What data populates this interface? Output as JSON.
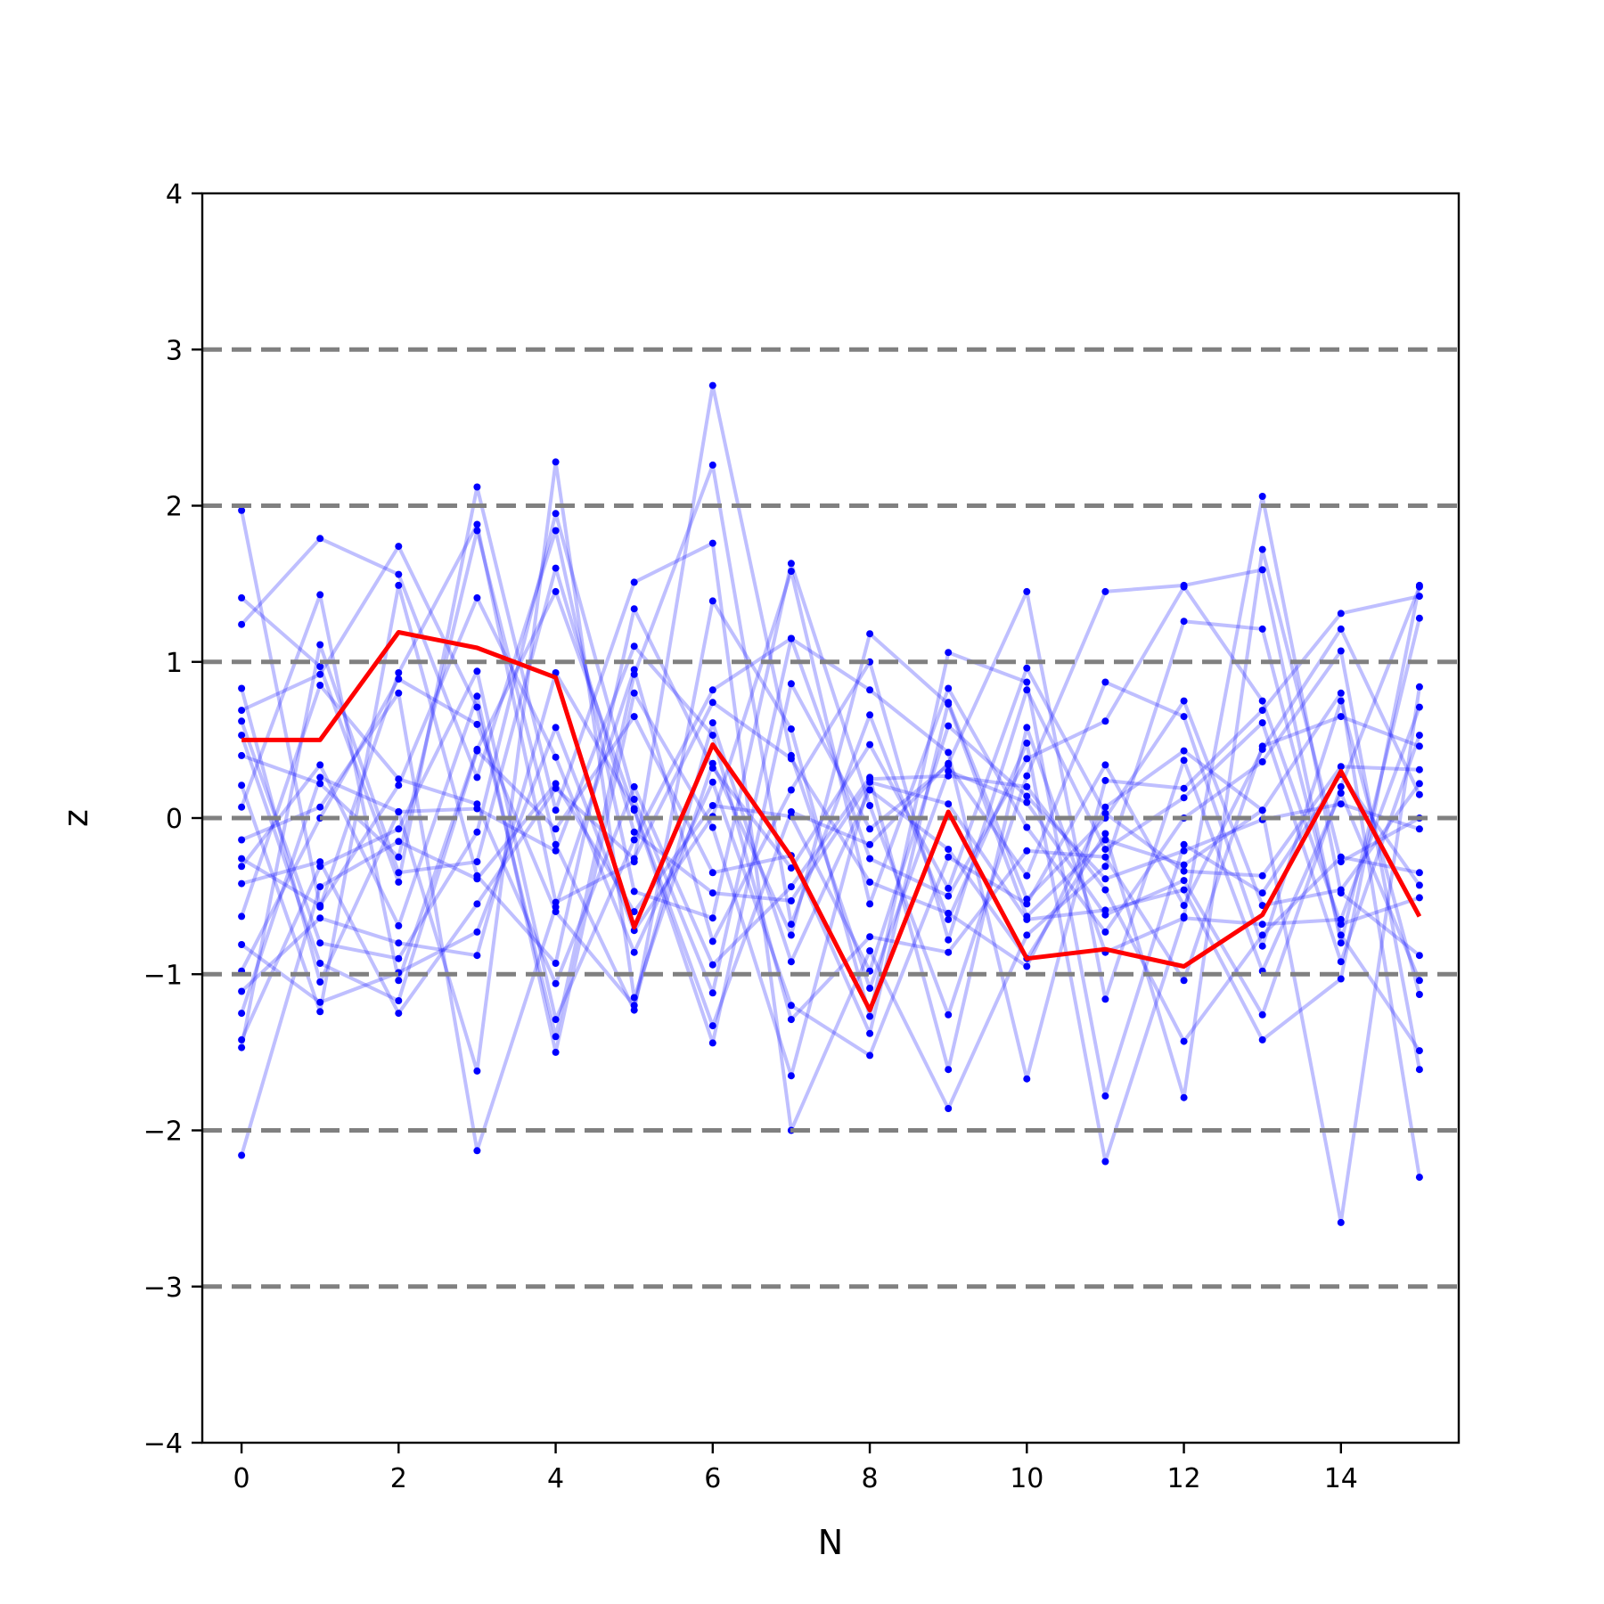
{
  "chart_data": {
    "type": "line",
    "title": "",
    "xlabel": "N",
    "ylabel": "z",
    "xlim": [
      -0.5,
      15.5
    ],
    "ylim": [
      -4,
      4
    ],
    "xticks": [
      0,
      2,
      4,
      6,
      8,
      10,
      12,
      14
    ],
    "yticks": [
      -4,
      -3,
      -2,
      -1,
      0,
      1,
      2,
      3,
      4
    ],
    "ytick_labels": [
      "−4",
      "−3",
      "−2",
      "−1",
      "0",
      "1",
      "2",
      "3",
      "4"
    ],
    "reference_lines": [
      -3,
      -2,
      -1,
      0,
      1,
      2,
      3
    ],
    "reference_line_color": "#808080",
    "grid": false,
    "legend": "none",
    "x": [
      0,
      1,
      2,
      3,
      4,
      5,
      6,
      7,
      8,
      9,
      10,
      11,
      12,
      13,
      14,
      15
    ],
    "highlight_series": {
      "color": "#ff0000",
      "values": [
        0.5,
        0.5,
        1.19,
        1.09,
        0.9,
        -0.7,
        0.47,
        -0.25,
        -1.23,
        0.04,
        -0.9,
        -0.84,
        -0.95,
        -0.62,
        0.3,
        -0.63
      ]
    },
    "background_series_color": "#0000ff",
    "background_series": [
      [
        1.97,
        -0.57,
        0.93,
        1.88,
        -0.54,
        -0.28,
        2.77,
        0.4,
        -1.09,
        0.3,
        0.1,
        -0.62,
        -0.4,
        -1.26,
        0.2,
        1.48
      ],
      [
        1.41,
        0.97,
        -0.41,
        2.12,
        0.05,
        1.51,
        1.76,
        -2.0,
        -0.85,
        -1.86,
        -0.75,
        -0.31,
        1.26,
        1.21,
        -0.75,
        -1.49
      ],
      [
        1.24,
        1.79,
        1.56,
        0.26,
        1.84,
        -0.47,
        -0.64,
        1.63,
        0.08,
        -1.26,
        0.27,
        1.45,
        1.49,
        1.59,
        -0.8,
        1.28
      ],
      [
        0.83,
        -1.05,
        0.04,
        -1.62,
        2.28,
        -1.15,
        0.35,
        -0.75,
        1.18,
        0.73,
        -0.63,
        -0.14,
        -0.3,
        0.05,
        -2.59,
        0.84
      ],
      [
        0.69,
        0.92,
        1.74,
        0.71,
        -1.4,
        0.92,
        2.26,
        -0.68,
        0.66,
        -0.65,
        0.48,
        -2.2,
        -0.63,
        2.06,
        -0.48,
        -0.88
      ],
      [
        0.62,
        -0.8,
        -0.9,
        -0.09,
        1.95,
        0.12,
        -1.12,
        1.15,
        0.82,
        0.42,
        -1.67,
        0.24,
        0.19,
        0.69,
        1.31,
        1.42
      ],
      [
        0.4,
        0.22,
        -0.25,
        1.84,
        -0.17,
        -1.23,
        1.39,
        0.57,
        -1.27,
        1.06,
        0.87,
        -1.78,
        -0.17,
        -0.48,
        0.28,
        -0.43
      ],
      [
        0.21,
        -1.24,
        1.49,
        -0.37,
        -0.93,
        1.34,
        0.32,
        -0.32,
        0.47,
        -0.45,
        0.96,
        0.03,
        -0.34,
        -0.37,
        0.33,
        0.31
      ],
      [
        0.07,
        1.43,
        -1.04,
        0.44,
        1.45,
        0.05,
        -1.44,
        0.86,
        -0.07,
        0.34,
        -0.37,
        0.87,
        0.65,
        -0.82,
        0.75,
        -1.13
      ],
      [
        -0.14,
        0.07,
        0.8,
        -2.13,
        -0.57,
        0.95,
        -0.79,
        0.18,
        1.0,
        -0.78,
        0.82,
        -0.2,
        0.13,
        0.61,
        -0.92,
        0.53
      ],
      [
        -0.26,
        -0.56,
        0.21,
        1.41,
        0.39,
        -0.86,
        0.23,
        -1.2,
        -1.52,
        -0.25,
        -0.55,
        0.34,
        -0.56,
        0.44,
        1.21,
        0.15
      ],
      [
        -0.31,
        0.34,
        -0.69,
        0.78,
        -1.5,
        0.8,
        -0.06,
        -1.65,
        0.25,
        0.27,
        0.2,
        -0.46,
        -1.43,
        -0.75,
        -0.25,
        -0.35
      ],
      [
        -0.42,
        -0.28,
        -1.25,
        -0.55,
        0.19,
        -0.26,
        0.74,
        0.38,
        -0.41,
        -0.61,
        -0.95,
        0.07,
        0.43,
        0.05,
        0.8,
        -2.3
      ],
      [
        -0.63,
        0.85,
        0.25,
        0.09,
        -1.06,
        0.2,
        -0.94,
        -0.44,
        0.26,
        -1.61,
        0.58,
        -0.86,
        -0.64,
        -0.68,
        -0.65,
        0.71
      ],
      [
        -0.81,
        -1.18,
        -0.99,
        -0.73,
        0.58,
        -0.72,
        0.01,
        1.58,
        -0.55,
        0.83,
        -0.06,
        -0.73,
        0.0,
        0.36,
        1.07,
        -1.61
      ],
      [
        -0.98,
        0.0,
        0.89,
        0.6,
        -0.6,
        -1.2,
        0.61,
        -0.92,
        0.18,
        -0.2,
        -0.9,
        -0.1,
        -1.79,
        1.72,
        -0.28,
        0.0
      ],
      [
        -1.11,
        -0.64,
        -0.8,
        -0.88,
        0.93,
        0.06,
        -1.33,
        0.04,
        -0.17,
        0.35,
        1.45,
        -1.16,
        0.37,
        -0.98,
        0.16,
        -1.04
      ],
      [
        -1.25,
        0.26,
        0.04,
        0.06,
        -0.21,
        1.1,
        0.53,
        -1.29,
        -0.76,
        -0.86,
        -0.21,
        -0.25,
        -1.04,
        0.46,
        0.65,
        0.46
      ],
      [
        -1.42,
        -0.31,
        -0.07,
        0.94,
        -1.29,
        -0.14,
        0.82,
        1.15,
        -0.26,
        -0.5,
        0.38,
        0.62,
        1.48,
        0.75,
        -0.68,
        -0.51
      ],
      [
        -1.47,
        1.11,
        -0.35,
        -0.28,
        1.6,
        -0.09,
        -0.48,
        -0.53,
        0.23,
        0.09,
        -0.65,
        -0.59,
        -0.46,
        -1.42,
        -1.03,
        1.49
      ],
      [
        -2.16,
        -0.44,
        -0.15,
        -0.39,
        0.22,
        -0.6,
        0.08,
        0.01,
        -0.98,
        0.59,
        0.14,
        -0.39,
        -0.21,
        -0.01,
        0.09,
        -0.07
      ],
      [
        0.53,
        -0.93,
        -1.17,
        0.43,
        -0.07,
        0.65,
        -0.35,
        -0.24,
        -1.38,
        0.74,
        -0.52,
        0.0,
        0.75,
        -0.56,
        -0.46,
        0.22
      ]
    ]
  }
}
